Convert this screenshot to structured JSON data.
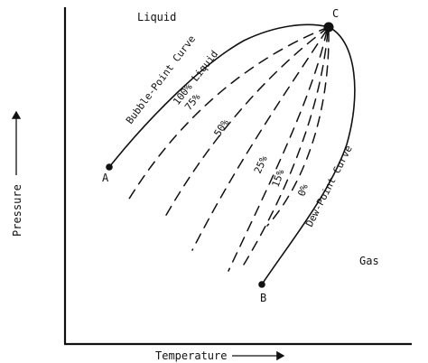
{
  "regions": {
    "liquid": "Liquid",
    "gas": "Gas"
  },
  "points": {
    "a": "A",
    "b": "B",
    "c": "C"
  },
  "curves": {
    "bubble_point": "Bubble-Point Curve",
    "dew_point": "Dew-Point Curve"
  },
  "quality_lines": {
    "q100": "100% Liquid",
    "q75": "75%",
    "q50": "50%",
    "q25": "25%",
    "q15": "15%",
    "q0": "0%"
  },
  "axes": {
    "xlabel": "Temperature",
    "ylabel": "Pressure"
  }
}
